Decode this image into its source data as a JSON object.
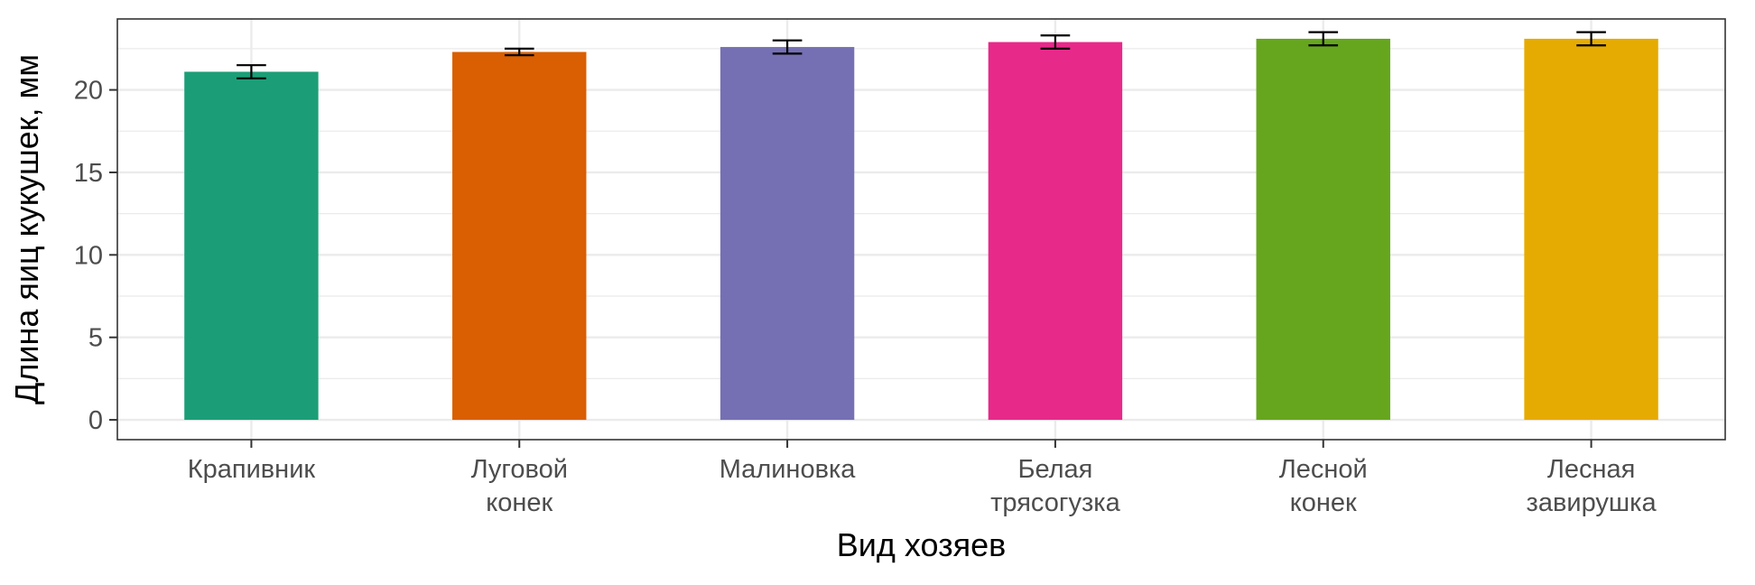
{
  "chart_data": {
    "type": "bar",
    "xlabel": "Вид хозяев",
    "ylabel": "Длина яиц кукушек, мм",
    "ylim": [
      -1.2,
      24.3
    ],
    "yticks": [
      0,
      5,
      10,
      15,
      20
    ],
    "grid": true,
    "legend": "none",
    "categories": [
      [
        "Крапивник"
      ],
      [
        "Луговой",
        "конек"
      ],
      [
        "Малиновка"
      ],
      [
        "Белая",
        "трясогузка"
      ],
      [
        "Лесной",
        "конек"
      ],
      [
        "Лесная",
        "завирушка"
      ]
    ],
    "values": [
      21.1,
      22.3,
      22.6,
      22.9,
      23.1,
      23.1
    ],
    "error_low": [
      20.7,
      22.1,
      22.2,
      22.5,
      22.7,
      22.7
    ],
    "error_high": [
      21.5,
      22.5,
      23.0,
      23.3,
      23.5,
      23.5
    ],
    "colors": [
      "#1B9E77",
      "#D95F02",
      "#7570B3",
      "#E7298A",
      "#66A61E",
      "#E6AB02"
    ]
  }
}
